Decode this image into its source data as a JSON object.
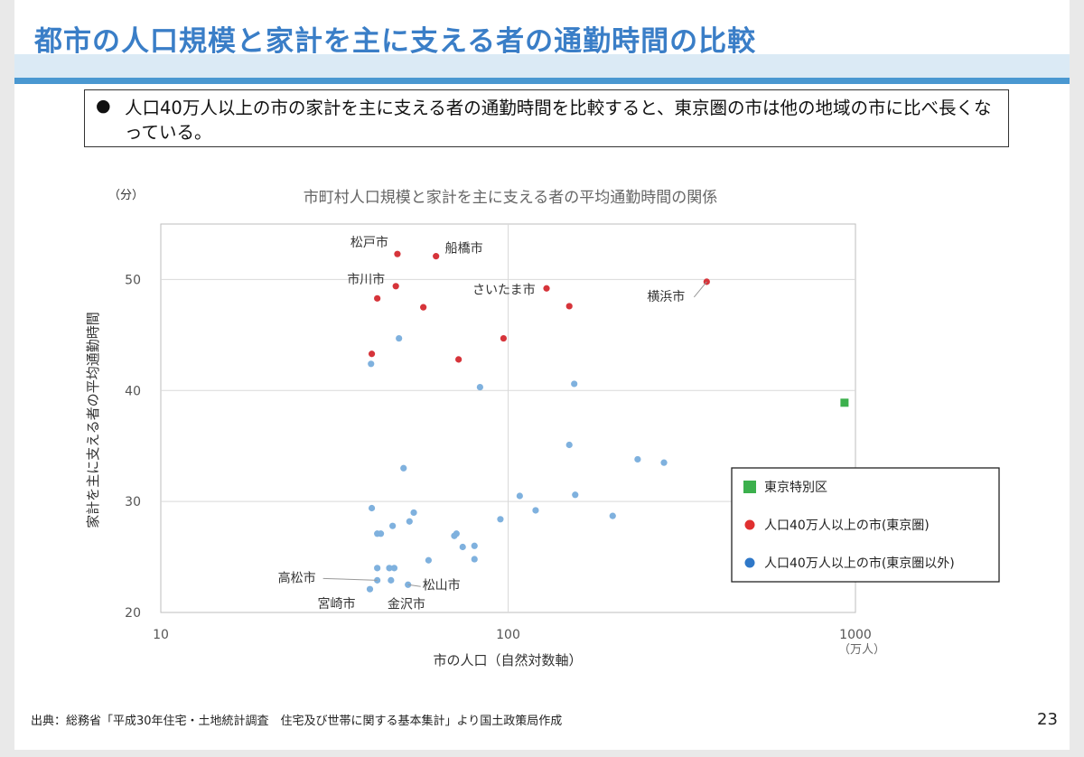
{
  "slide": {
    "title": "都市の人口規模と家計を主に支える者の通勤時間の比較",
    "summary_bullet": "●",
    "summary": "人口40万人以上の市の家計を主に支える者の通勤時間を比較すると、東京圏の市は他の地域の市に比べ長くなっている。",
    "source": "出典：総務省「平成30年住宅・土地統計調査　住宅及び世帯に関する基本集計」より国土政策局作成",
    "page_number": "23"
  },
  "colors": {
    "title": "#3a7ec7",
    "tokyo_ward": "#3cb04d",
    "tokyo_area": "#d6343a",
    "other": "#7fb1de",
    "band_light": "#dbeaf5",
    "band_dark": "#4a98d1"
  },
  "chart_data": {
    "type": "scatter",
    "title": "市町村人口規模と家計を主に支える者の平均通勤時間の関係",
    "xlabel": "市の人口（自然対数軸）",
    "x_unit": "（万人）",
    "ylabel": "家計を主に支える者の平均通勤時間",
    "y_unit": "（分）",
    "x_scale": "log",
    "xlim": [
      10,
      1000
    ],
    "ylim": [
      20,
      55
    ],
    "x_ticks": [
      "10",
      "100",
      "1000"
    ],
    "y_ticks": [
      "20",
      "30",
      "40",
      "50"
    ],
    "grid": true,
    "legend_position": "right",
    "series": [
      {
        "name": "東京特別区",
        "marker": "square",
        "points": [
          {
            "x": 930,
            "y": 38.9
          }
        ]
      },
      {
        "name": "人口40万人以上の市(東京圏)",
        "marker": "circle",
        "points": [
          {
            "x": 48,
            "y": 52.3,
            "label": "松戸市"
          },
          {
            "x": 62,
            "y": 52.1,
            "label": "船橋市"
          },
          {
            "x": 47.5,
            "y": 49.4,
            "label": "市川市"
          },
          {
            "x": 129,
            "y": 49.2,
            "label": "さいたま市"
          },
          {
            "x": 373,
            "y": 49.8,
            "label": "横浜市"
          },
          {
            "x": 42,
            "y": 48.3
          },
          {
            "x": 57,
            "y": 47.5
          },
          {
            "x": 150,
            "y": 47.6
          },
          {
            "x": 97,
            "y": 44.7
          },
          {
            "x": 40.5,
            "y": 43.3
          },
          {
            "x": 72,
            "y": 42.8
          }
        ]
      },
      {
        "name": "人口40万人以上の市(東京圏以外)",
        "marker": "circle",
        "points": [
          {
            "x": 48.5,
            "y": 44.7
          },
          {
            "x": 40.3,
            "y": 42.4
          },
          {
            "x": 83,
            "y": 40.3
          },
          {
            "x": 155,
            "y": 40.6
          },
          {
            "x": 150,
            "y": 35.1
          },
          {
            "x": 236,
            "y": 33.8
          },
          {
            "x": 281,
            "y": 33.5
          },
          {
            "x": 50,
            "y": 33.0
          },
          {
            "x": 108,
            "y": 30.5
          },
          {
            "x": 156,
            "y": 30.6
          },
          {
            "x": 40.5,
            "y": 29.4
          },
          {
            "x": 120,
            "y": 29.2
          },
          {
            "x": 53.5,
            "y": 29.0
          },
          {
            "x": 200,
            "y": 28.7
          },
          {
            "x": 95,
            "y": 28.4
          },
          {
            "x": 52,
            "y": 28.2
          },
          {
            "x": 46.5,
            "y": 27.8
          },
          {
            "x": 42,
            "y": 27.1
          },
          {
            "x": 43,
            "y": 27.1
          },
          {
            "x": 71,
            "y": 27.1
          },
          {
            "x": 70,
            "y": 26.9
          },
          {
            "x": 80,
            "y": 26.0
          },
          {
            "x": 74,
            "y": 25.9
          },
          {
            "x": 80,
            "y": 24.8
          },
          {
            "x": 59,
            "y": 24.7
          },
          {
            "x": 42,
            "y": 24.0
          },
          {
            "x": 45.5,
            "y": 24.0
          },
          {
            "x": 47,
            "y": 24.0
          },
          {
            "x": 42,
            "y": 22.9,
            "label": "高松市"
          },
          {
            "x": 46,
            "y": 22.9,
            "label": "金沢市"
          },
          {
            "x": 51.5,
            "y": 22.5,
            "label": "松山市"
          },
          {
            "x": 40,
            "y": 22.1,
            "label": "宮崎市"
          }
        ]
      }
    ]
  }
}
